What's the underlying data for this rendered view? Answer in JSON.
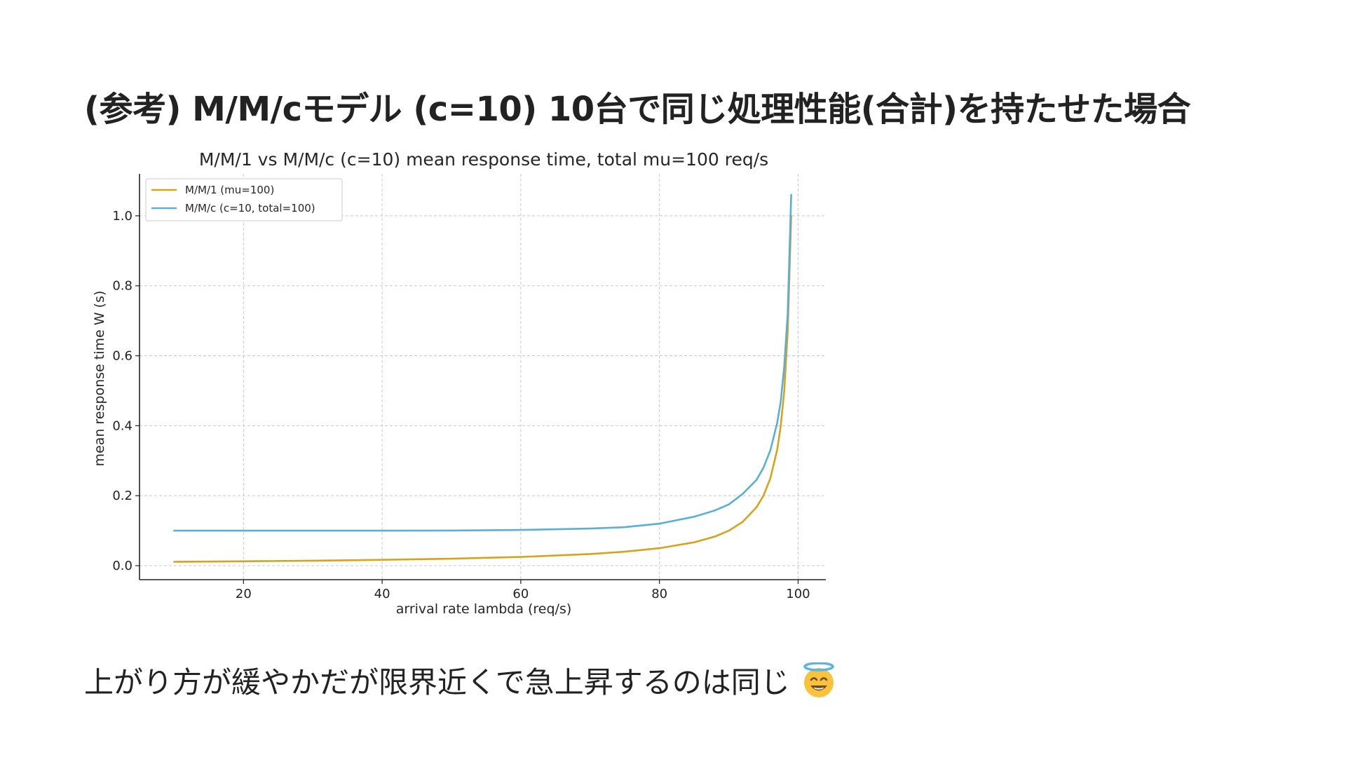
{
  "slide": {
    "title": "(参考) M/M/cモデル (c=10) 10台で同じ処理性能(合計)を持たせた場合",
    "caption": "上がり方が緩やかだが限界近くで急上昇するのは同じ",
    "caption_icon": "smiling-face-with-halo-icon"
  },
  "chart_data": {
    "type": "line",
    "title": "M/M/1 vs M/M/c (c=10) mean response time, total mu=100 req/s",
    "xlabel": "arrival rate lambda (req/s)",
    "ylabel": "mean response time W (s)",
    "xlim": [
      5,
      104
    ],
    "ylim": [
      -0.04,
      1.12
    ],
    "xticks": [
      20,
      40,
      60,
      80,
      100
    ],
    "yticks": [
      0.0,
      0.2,
      0.4,
      0.6,
      0.8,
      1.0
    ],
    "grid": true,
    "legend_position": "top-left",
    "x": [
      10,
      20,
      30,
      40,
      50,
      60,
      70,
      75,
      80,
      85,
      88,
      90,
      92,
      94,
      95,
      96,
      97,
      97.5,
      98,
      98.5,
      99
    ],
    "series": [
      {
        "name": "M/M/1 (mu=100)",
        "color": "#D9A21B",
        "values": [
          0.011,
          0.0125,
          0.0143,
          0.0167,
          0.02,
          0.025,
          0.0333,
          0.04,
          0.05,
          0.0667,
          0.0833,
          0.1,
          0.125,
          0.167,
          0.2,
          0.25,
          0.333,
          0.4,
          0.5,
          0.667,
          1.0
        ]
      },
      {
        "name": "M/M/c (c=10, total=100)",
        "color": "#5AAFD9",
        "values": [
          0.1,
          0.1,
          0.1,
          0.1,
          0.1005,
          0.102,
          0.106,
          0.11,
          0.12,
          0.14,
          0.158,
          0.175,
          0.205,
          0.245,
          0.28,
          0.33,
          0.41,
          0.47,
          0.57,
          0.72,
          1.06
        ]
      }
    ]
  }
}
